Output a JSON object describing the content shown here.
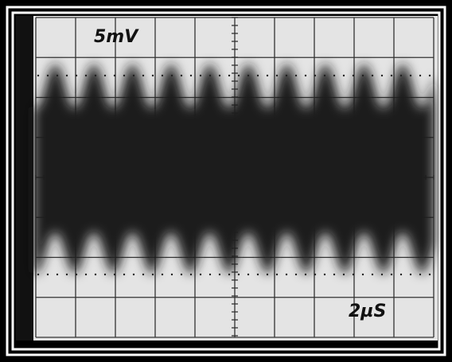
{
  "screen": {
    "vertical_scale": "5mV",
    "time_scale": "2µS"
  }
}
